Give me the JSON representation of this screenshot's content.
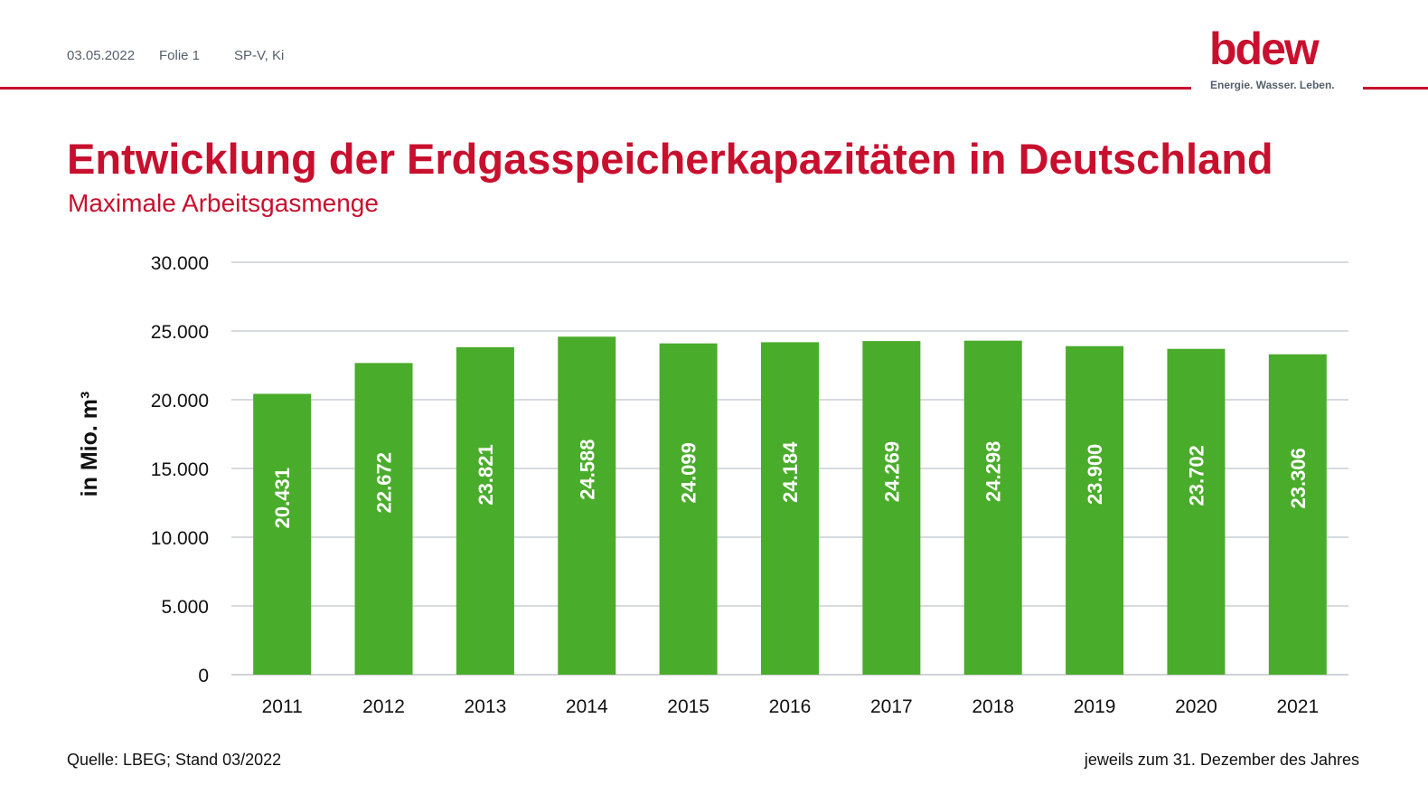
{
  "header": {
    "date": "03.05.2022",
    "folie": "Folie 1",
    "author": "SP-V, Ki",
    "logo_word": "bdew",
    "logo_tagline": "Energie. Wasser. Leben."
  },
  "colors": {
    "brand_red": "#c8102e",
    "bar_green": "#4aac2b",
    "grid": "#bfc4ca",
    "meta_gray": "#555f6b"
  },
  "title": "Entwicklung der Erdgasspeicherkapazitäten in Deutschland",
  "subtitle": "Maximale Arbeitsgasmenge",
  "chart_data": {
    "type": "bar",
    "categories": [
      "2011",
      "2012",
      "2013",
      "2014",
      "2015",
      "2016",
      "2017",
      "2018",
      "2019",
      "2020",
      "2021"
    ],
    "values": [
      20431,
      22672,
      23821,
      24588,
      24099,
      24184,
      24269,
      24298,
      23900,
      23702,
      23306
    ],
    "data_labels": [
      "20.431",
      "22.672",
      "23.821",
      "24.588",
      "24.099",
      "24.184",
      "24.269",
      "24.298",
      "23.900",
      "23.702",
      "23.306"
    ],
    "ylabel": "in Mio. m³",
    "ylim": [
      0,
      30000
    ],
    "yticks": [
      0,
      5000,
      10000,
      15000,
      20000,
      25000,
      30000
    ],
    "ytick_labels": [
      "0",
      "5.000",
      "10.000",
      "15.000",
      "20.000",
      "25.000",
      "30.000"
    ],
    "grid": true,
    "legend": "none"
  },
  "footer": {
    "source": "Quelle: LBEG; Stand 03/2022",
    "note": "jeweils zum 31. Dezember des Jahres"
  }
}
